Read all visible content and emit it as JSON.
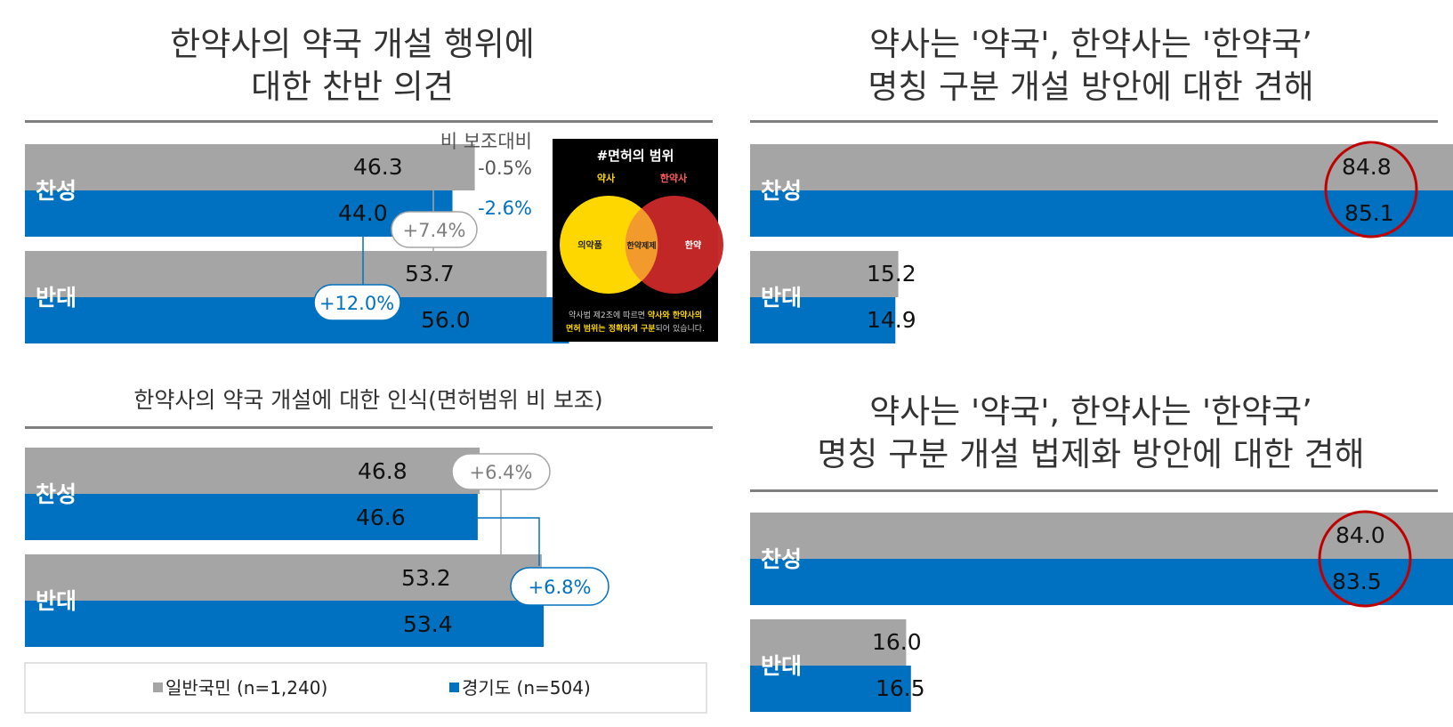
{
  "colors": {
    "general": "#a5a5a5",
    "gyeonggi": "#0070c0",
    "circle": "#c00000",
    "rule": "#7f7f7f"
  },
  "legend": {
    "general": "일반국민 (n=1,240)",
    "gyeonggi": "경기도 (n=504)"
  },
  "chart_data": [
    {
      "id": "chart1",
      "type": "bar",
      "title": [
        "한약사의 약국 개설 행위에",
        "대한 찬반 의견"
      ],
      "categories": [
        "찬성",
        "반대"
      ],
      "series": [
        {
          "name": "일반국민 (n=1,240)",
          "values": [
            46.3,
            53.7
          ]
        },
        {
          "name": "경기도 (n=504)",
          "values": [
            44.0,
            56.0
          ]
        }
      ],
      "value_labels": [
        [
          "46.3",
          "53.7"
        ],
        [
          "44.0",
          "56.0"
        ]
      ],
      "ylim": [
        0,
        100
      ],
      "annotations": {
        "compare_title": "비 보조대비",
        "general_diff": "-0.5%",
        "gyeonggi_diff": "-2.6%",
        "general_gap": "+7.4%",
        "gyeonggi_gap": "+12.0%"
      }
    },
    {
      "id": "chart2",
      "type": "bar",
      "title": [
        "한약사의 약국 개설에 대한 인식(면허범위 비 보조)"
      ],
      "categories": [
        "찬성",
        "반대"
      ],
      "series": [
        {
          "name": "일반국민 (n=1,240)",
          "values": [
            46.8,
            53.2
          ]
        },
        {
          "name": "경기도 (n=504)",
          "values": [
            46.6,
            53.4
          ]
        }
      ],
      "value_labels": [
        [
          "46.8",
          "53.2"
        ],
        [
          "46.6",
          "53.4"
        ]
      ],
      "ylim": [
        0,
        100
      ],
      "annotations": {
        "general_gap": "+6.4%",
        "gyeonggi_gap": "+6.8%"
      }
    },
    {
      "id": "chart3",
      "type": "bar",
      "title": [
        "약사는 '약국', 한약사는 '한약국’",
        "명칭 구분 개설 방안에 대한 견해"
      ],
      "categories": [
        "찬성",
        "반대"
      ],
      "series": [
        {
          "name": "일반국민 (n=1,240)",
          "values": [
            84.8,
            15.2
          ]
        },
        {
          "name": "경기도 (n=504)",
          "values": [
            85.1,
            14.9
          ]
        }
      ],
      "value_labels": [
        [
          "84.8",
          "15.2"
        ],
        [
          "85.1",
          "14.9"
        ]
      ],
      "ylim": [
        0,
        100
      ]
    },
    {
      "id": "chart4",
      "type": "bar",
      "title": [
        "약사는 '약국', 한약사는 '한약국’",
        "명칭 구분 개설 법제화 방안에 대한 견해"
      ],
      "categories": [
        "찬성",
        "반대"
      ],
      "series": [
        {
          "name": "일반국민 (n=1,240)",
          "values": [
            84.0,
            16.0
          ]
        },
        {
          "name": "경기도 (n=504)",
          "values": [
            83.5,
            16.5
          ]
        }
      ],
      "value_labels": [
        [
          "84.0",
          "16.0"
        ],
        [
          "83.5",
          "16.5"
        ]
      ],
      "ylim": [
        0,
        100
      ]
    }
  ],
  "venn": {
    "title": "#면허의 범위",
    "left_label": "약사",
    "right_label": "한약사",
    "left_inner": "의약품",
    "center_inner": "한약제제",
    "right_inner": "한약",
    "caption_line1_a": "약사법 제2조에 따르면 ",
    "caption_line1_b": "약사와 한약사의",
    "caption_line2_a": "면허 범위는 정확하게 구분",
    "caption_line2_b": "되어 있습니다."
  }
}
